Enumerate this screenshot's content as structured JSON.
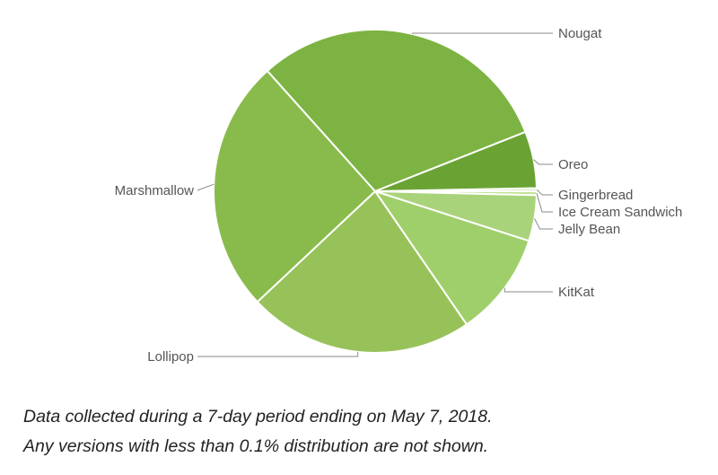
{
  "chart_data": {
    "type": "pie",
    "title": "",
    "slices": [
      {
        "label": "Gingerbread",
        "value": 0.3,
        "color": "#d6eeb2"
      },
      {
        "label": "Ice Cream Sandwich",
        "value": 0.4,
        "color": "#c3e396"
      },
      {
        "label": "Jelly Bean",
        "value": 4.6,
        "color": "#a9d37a"
      },
      {
        "label": "KitKat",
        "value": 10.5,
        "color": "#9fcf6a"
      },
      {
        "label": "Lollipop",
        "value": 22.7,
        "color": "#97c25a"
      },
      {
        "label": "Marshmallow",
        "value": 25.5,
        "color": "#89bb4c"
      },
      {
        "label": "Nougat",
        "value": 30.8,
        "color": "#7cb342"
      },
      {
        "label": "Oreo",
        "value": 5.7,
        "color": "#6aa334"
      }
    ]
  },
  "captions": {
    "line1": "Data collected during a 7-day period ending on May 7, 2018.",
    "line2": "Any versions with less than 0.1% distribution are not shown."
  }
}
